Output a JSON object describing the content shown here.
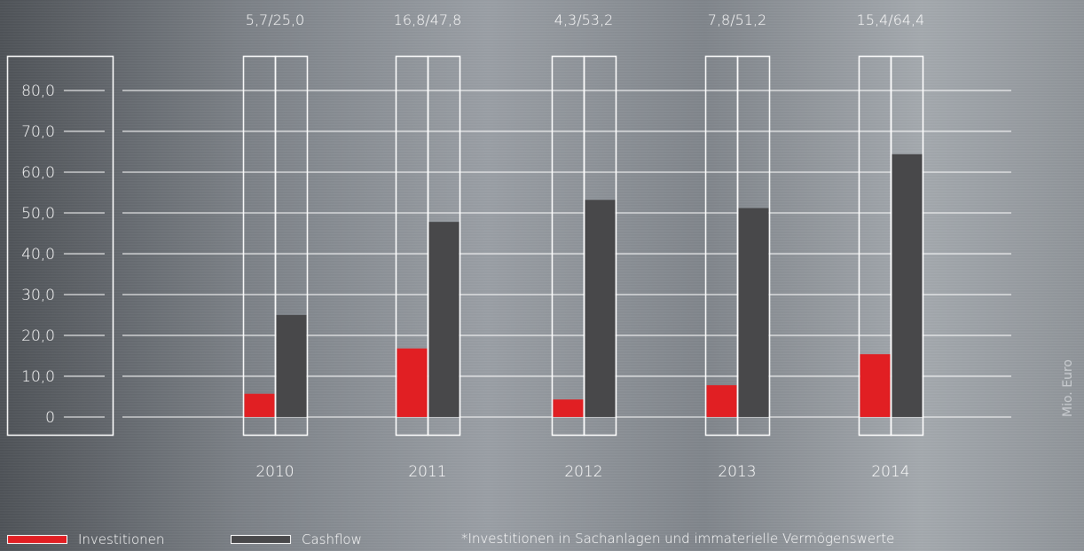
{
  "chart_data": {
    "type": "bar",
    "categories": [
      "2010",
      "2011",
      "2012",
      "2013",
      "2014"
    ],
    "series": [
      {
        "name": "Investitionen",
        "values": [
          5.7,
          16.8,
          4.3,
          7.8,
          15.4
        ],
        "color": "#e11f23"
      },
      {
        "name": "Cashflow",
        "values": [
          25.0,
          47.8,
          53.2,
          51.2,
          64.4
        ],
        "color": "#48484a"
      }
    ],
    "top_labels": [
      "5,7/25,0",
      "16,8/47,8",
      "4,3/53,2",
      "7,8/51,2",
      "15,4/64,4"
    ],
    "y_ticks": [
      "0",
      "10,0",
      "20,0",
      "30,0",
      "40,0",
      "50,0",
      "60,0",
      "70,0",
      "80,0"
    ],
    "ylim": [
      0,
      80
    ],
    "unit": "Mio. Euro",
    "grid": true,
    "legend_position": "bottom-left",
    "footnote": "*Investitionen in Sachanlagen und immaterielle Vermögenswerte"
  }
}
